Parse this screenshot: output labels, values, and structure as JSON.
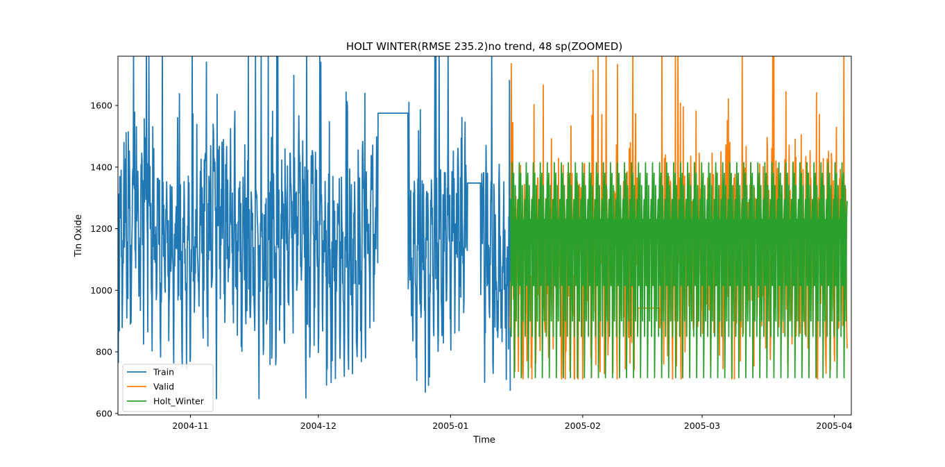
{
  "chart_data": {
    "type": "line",
    "title": "HOLT WINTER(RMSE 235.2)no trend, 48 sp(ZOOMED)",
    "xlabel": "Time",
    "ylabel": "Tin Oxide",
    "xlim": [
      "2004-10-15",
      "2005-04-05"
    ],
    "ylim": [
      595,
      1760
    ],
    "x_ticks": [
      "2004-11",
      "2004-12",
      "2005-01",
      "2005-02",
      "2005-03",
      "2005-04"
    ],
    "y_ticks": [
      600,
      800,
      1000,
      1200,
      1400,
      1600
    ],
    "grid": false,
    "legend": {
      "position": "lower-left"
    },
    "series": [
      {
        "name": "Train",
        "color": "#1f77b4",
        "x_range": [
          "2004-10-15",
          "2005-01-15"
        ],
        "min": 648,
        "max": 1760,
        "flat_segments": [
          {
            "from": "2004-12-15",
            "to": "2004-12-22",
            "value": 1575
          },
          {
            "from": "2005-01-05",
            "to": "2005-01-08",
            "value": 1348
          }
        ]
      },
      {
        "name": "Valid",
        "color": "#ff7f0e",
        "x_range": [
          "2005-01-15",
          "2005-04-04"
        ],
        "min": 712,
        "max": 1760
      },
      {
        "name": "Holt_Winter",
        "color": "#2ca02c",
        "x_range": [
          "2005-01-15",
          "2005-04-04"
        ],
        "min": 716,
        "max": 1414,
        "cycles": 48
      }
    ]
  }
}
